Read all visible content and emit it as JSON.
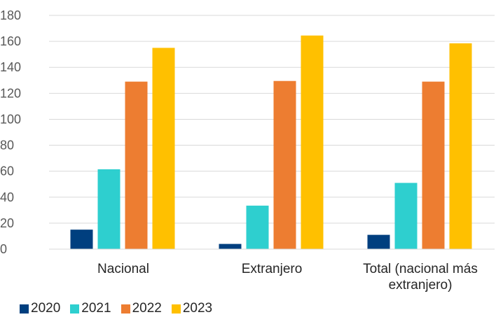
{
  "chart_data": {
    "type": "bar",
    "title": "",
    "xlabel": "",
    "ylabel": "",
    "ylim": [
      0,
      180
    ],
    "yticks": [
      0,
      20,
      40,
      60,
      80,
      100,
      120,
      140,
      160,
      180
    ],
    "grid": true,
    "legend_position": "bottom-left",
    "categories": [
      [
        "Nacional"
      ],
      [
        "Extranjero"
      ],
      [
        "Total (nacional más",
        "extranjero)"
      ]
    ],
    "series": [
      {
        "name": "2020",
        "color": "#003f7f",
        "values": [
          15,
          4,
          11
        ]
      },
      {
        "name": "2021",
        "color": "#2ecfcf",
        "values": [
          61.5,
          33.5,
          51
        ]
      },
      {
        "name": "2022",
        "color": "#ed7d31",
        "values": [
          129,
          129.5,
          129
        ]
      },
      {
        "name": "2023",
        "color": "#ffc000",
        "values": [
          155,
          164.5,
          158.5
        ]
      }
    ]
  }
}
